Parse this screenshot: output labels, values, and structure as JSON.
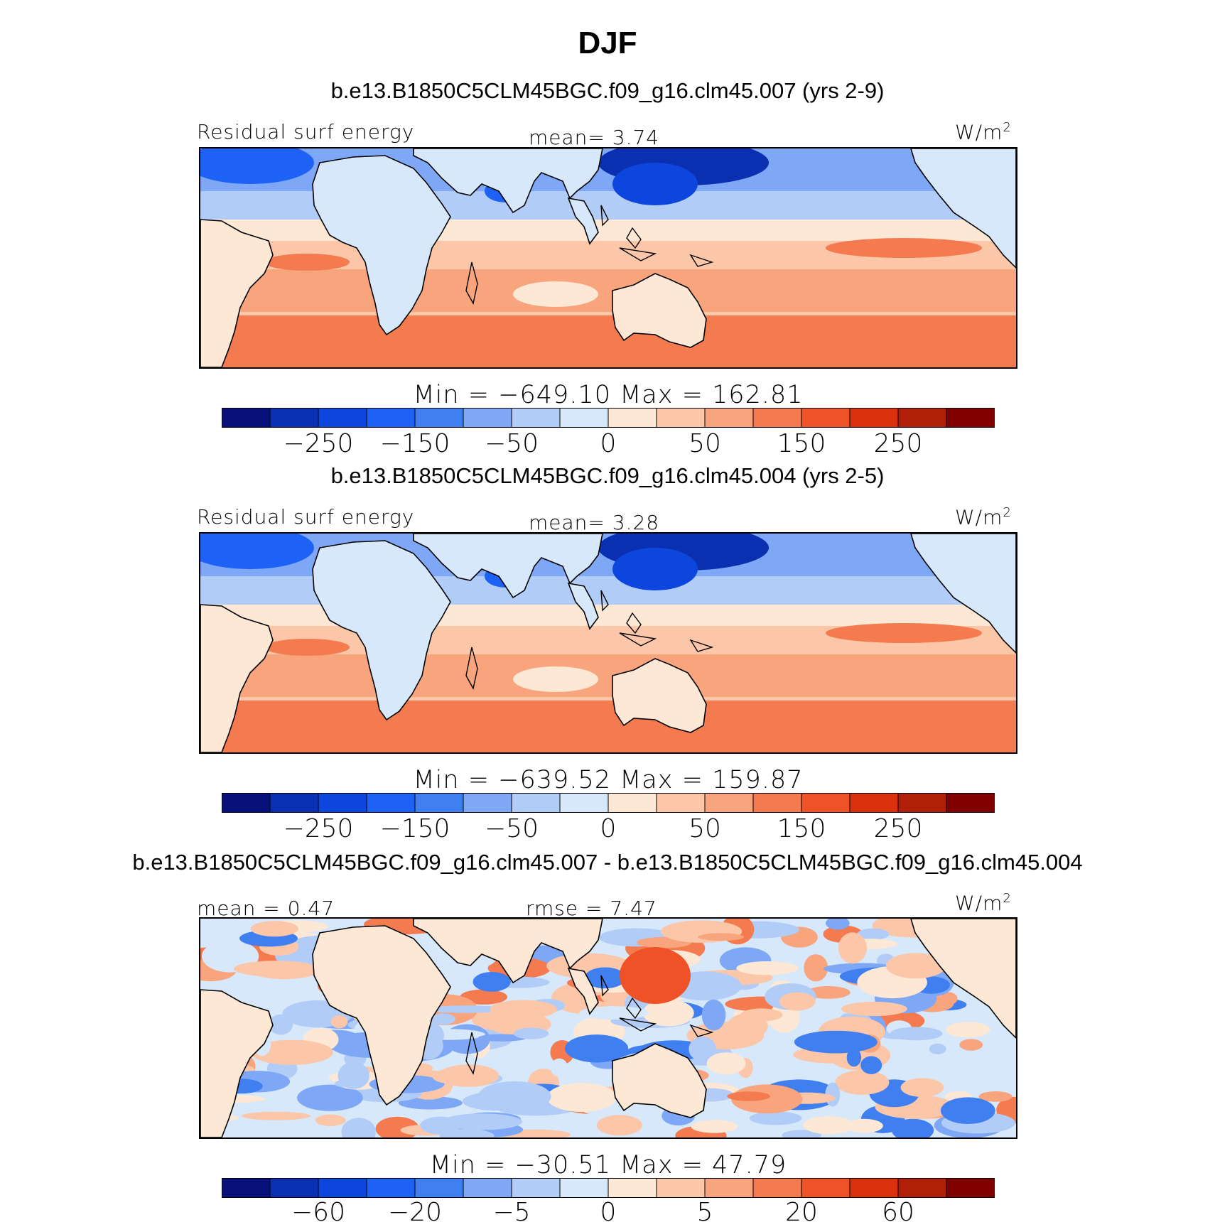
{
  "title": "DJF",
  "palette": [
    "#08107a",
    "#0a2fb0",
    "#0d46dd",
    "#1d62f5",
    "#3f7ff0",
    "#7ea8f5",
    "#b1ccf7",
    "#d8e8fb",
    "#fde7d5",
    "#fcc6a8",
    "#f8a47c",
    "#f47a4f",
    "#ef5227",
    "#d9320b",
    "#b01f07",
    "#800000"
  ],
  "land_color": "#d8e8fb",
  "panels": [
    {
      "subtitle": "b.e13.B1850C5CLM45BGC.f09_g16.clm45.007 (yrs 2-9)",
      "left_label": "Residual surf energy",
      "center_label": "mean=   3.74",
      "units": "W/m",
      "units_sup": "2",
      "min_max": "Min = −649.10 Max = 162.81",
      "ticks": [
        "−250",
        "−150",
        "−50",
        "0",
        "50",
        "150",
        "250"
      ],
      "style": "mean"
    },
    {
      "subtitle": "b.e13.B1850C5CLM45BGC.f09_g16.clm45.004 (yrs 2-5)",
      "left_label": "Residual surf energy",
      "center_label": "mean=   3.28",
      "units": "W/m",
      "units_sup": "2",
      "min_max": "Min = −639.52 Max = 159.87",
      "ticks": [
        "−250",
        "−150",
        "−50",
        "0",
        "50",
        "150",
        "250"
      ],
      "style": "mean"
    },
    {
      "subtitle": "b.e13.B1850C5CLM45BGC.f09_g16.clm45.007 - b.e13.B1850C5CLM45BGC.f09_g16.clm45.004",
      "left_label": "mean =   0.47",
      "center_label": "rmse =   7.47",
      "units": "W/m",
      "units_sup": "2",
      "min_max": "Min = −30.51 Max =  47.79",
      "ticks": [
        "−60",
        "−20",
        "−5",
        "0",
        "5",
        "20",
        "60"
      ],
      "style": "diff"
    }
  ]
}
